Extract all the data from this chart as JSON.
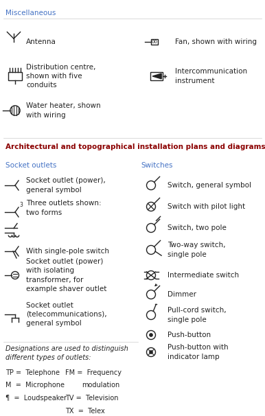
{
  "title_misc": "Miscellaneous",
  "title_arch": "Architectural and topographical installation plans and diagrams",
  "subtitle_socket": "Socket outlets",
  "subtitle_switches": "Switches",
  "color_blue": "#4472C4",
  "color_dark_red": "#8B0000",
  "color_black": "#222222",
  "bg_color": "#FFFFFF",
  "fig_w": 3.86,
  "fig_h": 6.06,
  "dpi": 100
}
